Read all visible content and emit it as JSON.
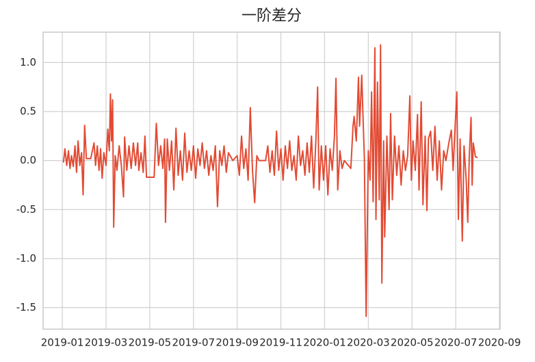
{
  "chart_data": {
    "type": "line",
    "title": "一阶差分",
    "x": [
      0.05,
      0.12,
      0.2,
      0.28,
      0.35,
      0.42,
      0.5,
      0.58,
      0.65,
      0.72,
      0.8,
      0.88,
      0.95,
      1.02,
      1.1,
      1.3,
      1.45,
      1.52,
      1.6,
      1.68,
      1.75,
      1.82,
      1.9,
      2.0,
      2.08,
      2.15,
      2.2,
      2.25,
      2.3,
      2.35,
      2.42,
      2.5,
      2.6,
      2.7,
      2.8,
      2.85,
      2.95,
      3.05,
      3.15,
      3.25,
      3.35,
      3.45,
      3.5,
      3.6,
      3.7,
      3.78,
      3.85,
      4.2,
      4.3,
      4.4,
      4.5,
      4.6,
      4.68,
      4.72,
      4.8,
      4.9,
      5.0,
      5.1,
      5.2,
      5.3,
      5.4,
      5.5,
      5.6,
      5.7,
      5.8,
      5.9,
      6.0,
      6.1,
      6.2,
      6.3,
      6.4,
      6.5,
      6.6,
      6.7,
      6.8,
      6.9,
      7.0,
      7.1,
      7.2,
      7.3,
      7.4,
      7.5,
      7.6,
      7.8,
      8.0,
      8.1,
      8.2,
      8.3,
      8.4,
      8.5,
      8.6,
      8.7,
      8.8,
      8.9,
      9.0,
      9.3,
      9.4,
      9.5,
      9.6,
      9.7,
      9.8,
      9.9,
      10.0,
      10.1,
      10.2,
      10.3,
      10.4,
      10.5,
      10.6,
      10.7,
      10.8,
      10.9,
      11.0,
      11.1,
      11.2,
      11.3,
      11.4,
      11.5,
      11.6,
      11.68,
      11.75,
      11.85,
      11.95,
      12.05,
      12.15,
      12.25,
      12.35,
      12.45,
      12.52,
      12.6,
      12.7,
      12.8,
      12.9,
      13.2,
      13.3,
      13.35,
      13.45,
      13.55,
      13.6,
      13.7,
      13.75,
      13.82,
      13.9,
      14.0,
      14.08,
      14.15,
      14.22,
      14.3,
      14.35,
      14.42,
      14.5,
      14.56,
      14.62,
      14.7,
      14.75,
      14.85,
      14.95,
      15.02,
      15.1,
      15.2,
      15.3,
      15.4,
      15.5,
      15.6,
      15.7,
      15.8,
      15.9,
      15.97,
      16.05,
      16.15,
      16.25,
      16.32,
      16.42,
      16.5,
      16.6,
      16.68,
      16.75,
      16.85,
      16.95,
      17.05,
      17.15,
      17.25,
      17.35,
      17.45,
      17.55,
      17.7,
      17.8,
      17.88,
      17.95,
      18.05,
      18.12,
      18.2,
      18.3,
      18.38,
      18.48,
      18.55,
      18.62,
      18.7,
      18.75,
      18.8,
      18.9,
      19.0
    ],
    "series": [
      {
        "color": "#e24a33",
        "values": [
          -0.02,
          0.12,
          -0.05,
          0.1,
          -0.08,
          0.05,
          -0.06,
          0.15,
          -0.12,
          0.2,
          -0.05,
          0.08,
          -0.35,
          0.36,
          0.02,
          0.02,
          0.18,
          -0.05,
          0.15,
          -0.1,
          0.12,
          -0.18,
          0.08,
          -0.05,
          0.32,
          0.1,
          0.68,
          0.2,
          0.62,
          -0.68,
          0.05,
          -0.1,
          0.15,
          -0.05,
          -0.37,
          0.24,
          -0.1,
          0.15,
          -0.08,
          0.18,
          -0.05,
          0.18,
          -0.1,
          0.08,
          -0.12,
          0.25,
          -0.17,
          -0.17,
          0.38,
          -0.05,
          0.15,
          -0.08,
          0.22,
          -0.63,
          0.22,
          -0.1,
          0.2,
          -0.3,
          0.33,
          -0.15,
          0.1,
          -0.2,
          0.28,
          -0.12,
          0.1,
          -0.1,
          0.15,
          -0.18,
          0.12,
          -0.05,
          0.18,
          -0.08,
          0.1,
          -0.15,
          0.05,
          -0.1,
          0.15,
          -0.47,
          0.1,
          -0.05,
          0.15,
          -0.12,
          0.08,
          0.0,
          0.05,
          -0.15,
          0.25,
          -0.08,
          0.12,
          -0.2,
          0.54,
          -0.1,
          -0.43,
          0.05,
          0.0,
          0.0,
          0.15,
          -0.12,
          0.1,
          -0.15,
          0.3,
          -0.1,
          0.12,
          -0.2,
          0.15,
          -0.08,
          0.2,
          -0.1,
          0.05,
          -0.2,
          0.25,
          -0.05,
          0.1,
          -0.15,
          0.18,
          -0.12,
          0.25,
          -0.28,
          0.2,
          0.75,
          -0.3,
          0.15,
          -0.2,
          0.15,
          -0.35,
          0.12,
          -0.1,
          0.25,
          0.84,
          -0.3,
          0.1,
          -0.08,
          0.0,
          -0.08,
          0.35,
          0.45,
          0.2,
          0.85,
          0.35,
          0.87,
          0.5,
          0.02,
          -1.59,
          0.1,
          -0.2,
          0.7,
          -0.42,
          1.15,
          -0.6,
          0.8,
          -0.4,
          1.18,
          -1.25,
          0.2,
          -0.78,
          0.25,
          -0.5,
          0.48,
          -0.4,
          0.25,
          -0.15,
          0.15,
          -0.25,
          0.1,
          -0.1,
          0.05,
          0.66,
          -0.2,
          0.2,
          -0.1,
          0.47,
          -0.3,
          0.6,
          -0.45,
          0.25,
          -0.51,
          0.22,
          0.3,
          -0.1,
          0.35,
          -0.2,
          0.2,
          -0.3,
          0.1,
          0.0,
          0.2,
          0.31,
          -0.1,
          0.25,
          0.7,
          -0.6,
          0.22,
          -0.82,
          0.15,
          -0.2,
          -0.63,
          0.05,
          0.44,
          -0.25,
          0.18,
          0.04,
          0.03
        ]
      }
    ],
    "xlim": [
      -0.88,
      20.03
    ],
    "xticks": [
      {
        "value": 0,
        "label": "2019-01"
      },
      {
        "value": 2,
        "label": "2019-03"
      },
      {
        "value": 4,
        "label": "2019-05"
      },
      {
        "value": 6,
        "label": "2019-07"
      },
      {
        "value": 8,
        "label": "2019-09"
      },
      {
        "value": 10,
        "label": "2019-11"
      },
      {
        "value": 12,
        "label": "2020-01"
      },
      {
        "value": 14,
        "label": "2020-03"
      },
      {
        "value": 16,
        "label": "2020-05"
      },
      {
        "value": 18,
        "label": "2020-07"
      },
      {
        "value": 20,
        "label": "2020-09"
      }
    ],
    "ylim": [
      -1.72,
      1.31
    ],
    "yticks": [
      -1.5,
      {
        "value": -1,
        "label": "-1.0"
      },
      -0.5,
      {
        "value": 0,
        "label": "0.0"
      },
      0.5,
      {
        "value": 1,
        "label": "1.0"
      }
    ],
    "grid": true
  }
}
